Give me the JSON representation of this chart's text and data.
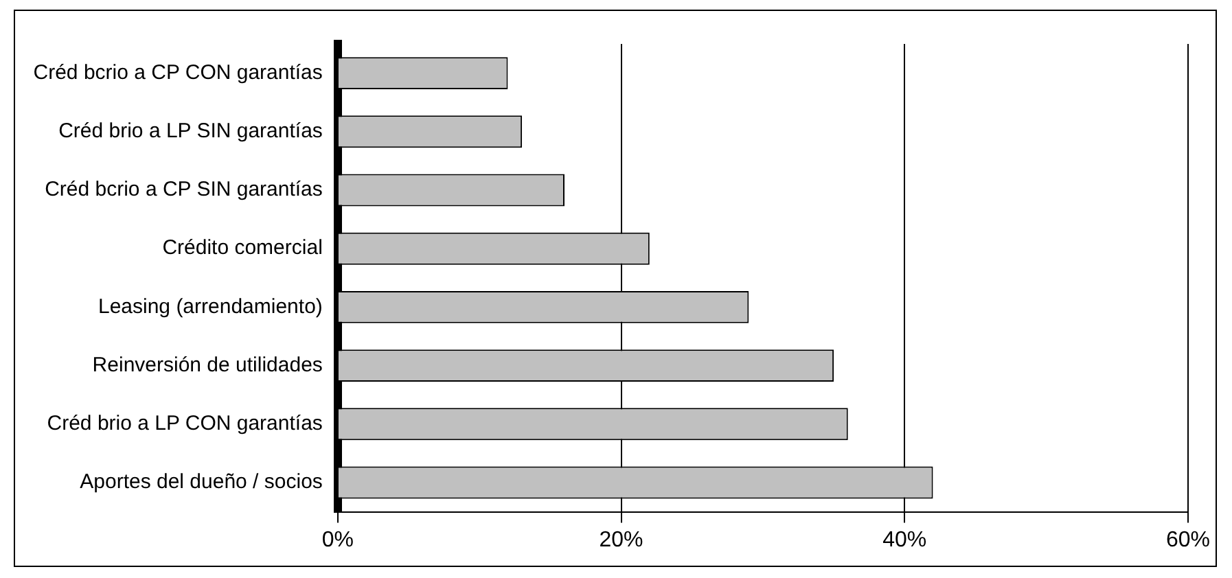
{
  "chart_data": {
    "type": "bar",
    "orientation": "horizontal",
    "categories": [
      "Créd bcrio a CP CON garantías",
      "Créd brio a LP SIN garantías",
      "Créd bcrio a CP SIN garantías",
      "Crédito comercial",
      "Leasing (arrendamiento)",
      "Reinversión de utilidades",
      "Créd brio a LP CON garantías",
      "Aportes del dueño / socios"
    ],
    "values": [
      12,
      13,
      16,
      22,
      29,
      35,
      36,
      42
    ],
    "color": "#c0c0c0",
    "xlim": [
      0,
      60
    ],
    "xticks": [
      {
        "value": 0,
        "label": "0%"
      },
      {
        "value": 20,
        "label": "20%"
      },
      {
        "value": 40,
        "label": "40%"
      },
      {
        "value": 60,
        "label": "60%"
      }
    ],
    "grid": "x",
    "legend": false
  }
}
